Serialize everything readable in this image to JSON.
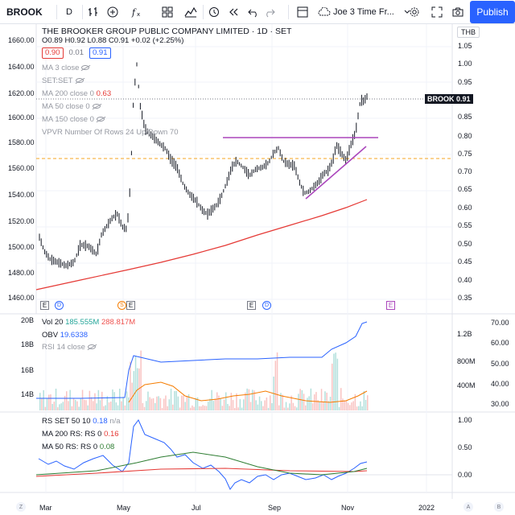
{
  "toolbar": {
    "symbol": "BROOK",
    "interval": "D",
    "layout_name": "Joe 3 Time Fr...",
    "publish_label": "Publish"
  },
  "main_legend": {
    "title": "THE BROOKER GROUP PUBLIC COMPANY LIMITED · 1D · SET",
    "ohlc": "O0.89 H0.92 L0.88 C0.91 +0.02 (+2.25%)",
    "bid": "0.90",
    "spread": "0.01",
    "ask": "0.91",
    "indicators": [
      {
        "label": "MA 3 close",
        "value": ""
      },
      {
        "label": "SET:SET",
        "value": ""
      },
      {
        "label": "MA 200 close 0",
        "value": "0.63"
      },
      {
        "label": "MA 50 close 0",
        "value": ""
      },
      {
        "label": "MA 150 close 0",
        "value": ""
      },
      {
        "label": "VPVR Number Of Rows 24 Up/Down 70",
        "value": ""
      }
    ]
  },
  "currency": "THB",
  "price_tag": {
    "symbol": "BROOK",
    "value": "0.91"
  },
  "left_axis": [
    "1660.00",
    "1640.00",
    "1620.00",
    "1600.00",
    "1580.00",
    "1560.00",
    "1540.00",
    "1520.00",
    "1500.00",
    "1480.00",
    "1460.00"
  ],
  "right_axis": [
    "1.05",
    "1.00",
    "0.95",
    "0.90",
    "0.85",
    "0.80",
    "0.75",
    "0.70",
    "0.65",
    "0.60",
    "0.55",
    "0.50",
    "0.45",
    "0.40",
    "0.35"
  ],
  "events": {
    "e": "E",
    "d": "D",
    "s": "S"
  },
  "volume_pane": {
    "vol_label": "Vol 20",
    "vol_value": "185.555M",
    "vol_ma": "288.817M",
    "obv_label": "OBV",
    "obv_value": "19.6338",
    "rsi_label": "RSI 14 close",
    "left_axis": [
      "20B",
      "18B",
      "16B",
      "14B"
    ],
    "right_obv_axis": [
      "1.2B",
      "800M",
      "400M"
    ],
    "right_rsi_axis": [
      "70.00",
      "60.00",
      "50.00",
      "40.00",
      "30.00"
    ]
  },
  "rs_pane": {
    "rs_label": "RS SET 50 10",
    "rs_value": "0.18",
    "rs_na": "n/a",
    "ma200_label": "MA 200 RS: RS 0",
    "ma200_value": "0.16",
    "ma50_label": "MA 50 RS: RS 0",
    "ma50_value": "0.08",
    "right_axis": [
      "1.00",
      "0.50",
      "0.00"
    ]
  },
  "time_axis": [
    "Mar",
    "May",
    "Jul",
    "Sep",
    "Nov",
    "2022"
  ],
  "corner": {
    "z": "Z",
    "a": "A",
    "b": "B"
  },
  "colors": {
    "accent": "#2962ff",
    "price_bars": "#131722",
    "ma200": "#e53935",
    "resistance": "#ab47bc",
    "support_dashed": "#f5a623",
    "obv": "#2962ff",
    "rsi": "#f57c00",
    "rs_ma50": "#2e7d32"
  }
}
